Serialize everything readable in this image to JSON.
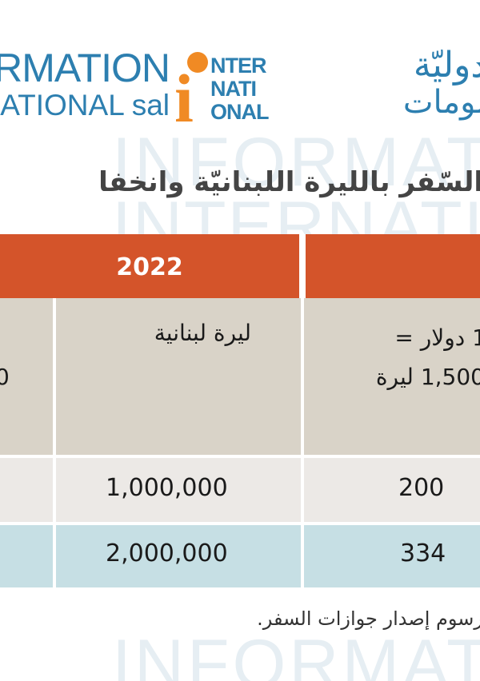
{
  "logo": {
    "en_line1": "RMATION",
    "en_line2": "ATIONAL sal",
    "mark_i": "i",
    "mark_rows": [
      "NTER",
      "NATI",
      "ONAL"
    ],
    "ar_line1": "دوليّة",
    "ar_line2": "لومات",
    "watermark_row1": "INFORMATION",
    "watermark_row2": "INTERNATIONAL",
    "watermark_row3": "INFORMATION"
  },
  "title": "السّفر بالليرة اللبنانيّة وانخفا",
  "table": {
    "year": "2022",
    "header_col_lbp": "ليرة لبنانية",
    "header_col_usd_line1": "1 دولار =",
    "header_col_usd_line2": "1,500 ليرة",
    "header_left_partial": "0",
    "rows": [
      {
        "lbp": "1,000,000",
        "usd": "200"
      },
      {
        "lbp": "2,000,000",
        "usd": "334"
      }
    ]
  },
  "note": "رسوم إصدار جوازات السفر."
}
